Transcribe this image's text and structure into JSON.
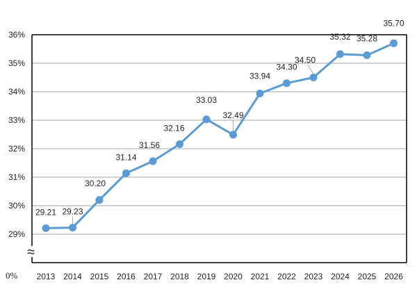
{
  "chart_data": {
    "type": "line",
    "x": [
      "2013",
      "2014",
      "2015",
      "2016",
      "2017",
      "2018",
      "2019",
      "2020",
      "2021",
      "2022",
      "2023",
      "2024",
      "2025",
      "2026"
    ],
    "series": [
      {
        "values": [
          29.21,
          29.23,
          30.2,
          31.14,
          31.56,
          32.16,
          33.03,
          32.49,
          33.94,
          34.3,
          34.5,
          35.32,
          35.28,
          35.7
        ],
        "labels": [
          "29.21",
          "29.23",
          "30.20",
          "31.14",
          "31.56",
          "32.16",
          "33.03",
          "32.49",
          "33.94",
          "34.30",
          "34.50",
          "35.32",
          "35.28",
          "35.70"
        ]
      }
    ],
    "yticks": [
      "36%",
      "35%",
      "34%",
      "33%",
      "32%",
      "31%",
      "30%",
      "29%"
    ],
    "ytick_values": [
      36,
      35,
      34,
      33,
      32,
      31,
      30,
      29
    ],
    "y_zero_label": "0%",
    "y_break_symbol": "≈",
    "ylim": [
      29,
      36
    ],
    "grid": true,
    "legend": "none",
    "colors": {
      "line": "#5b9bd5",
      "grid": "#a6a6a6",
      "axis": "#000000"
    }
  }
}
